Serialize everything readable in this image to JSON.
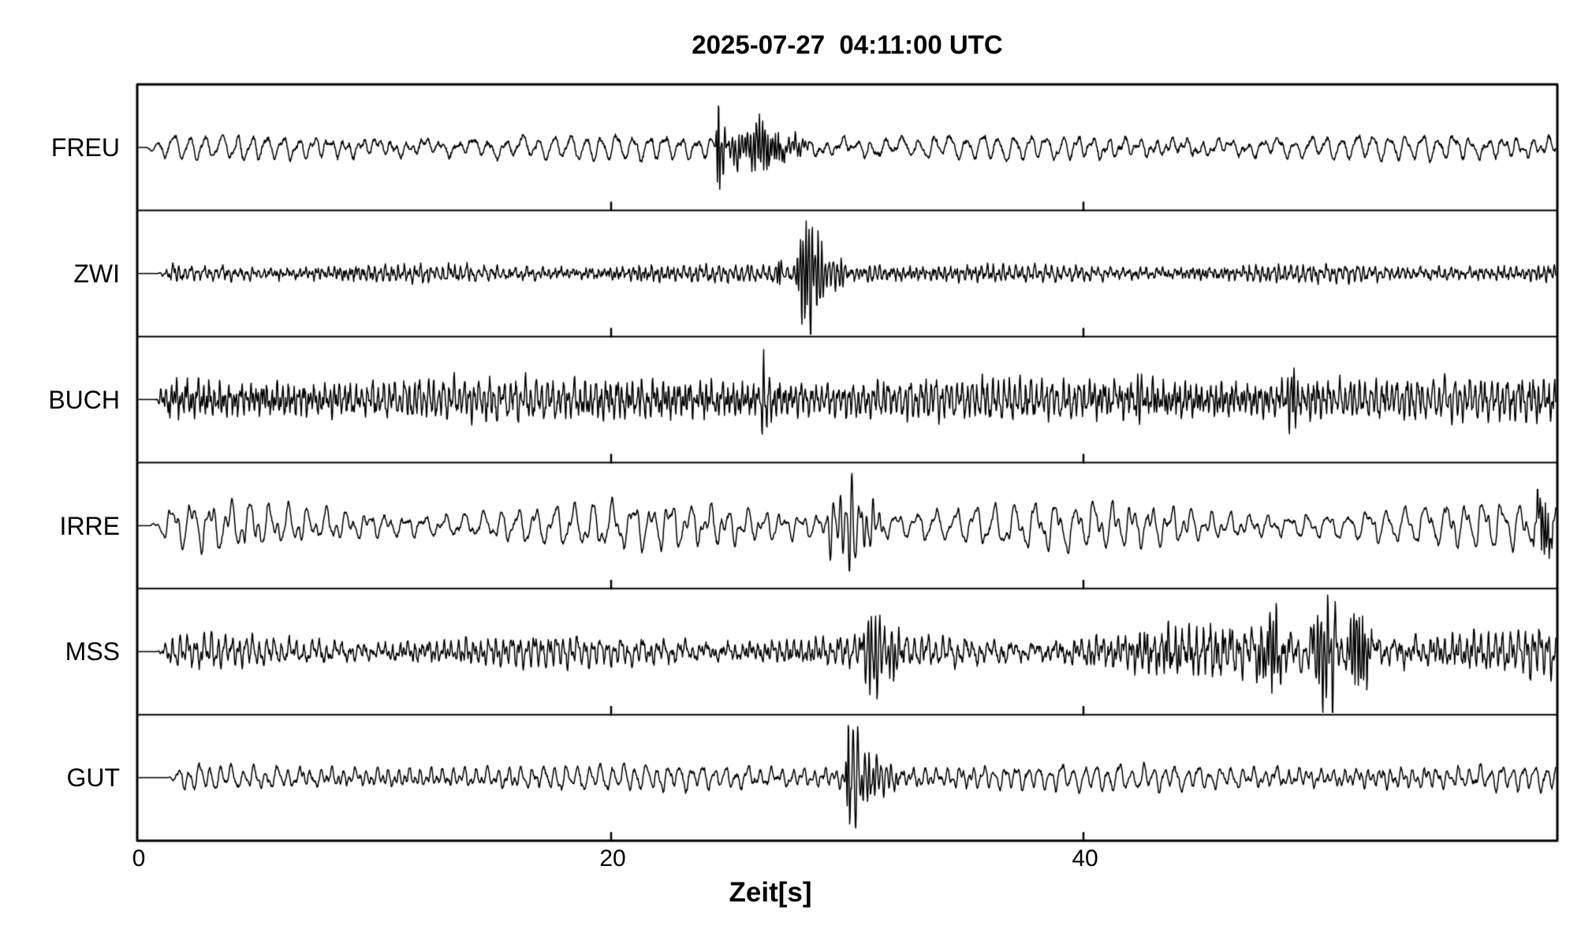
{
  "title": "2025-07-27  04:11:00 UTC",
  "colors": {
    "trace": "#000000",
    "frame": "#000000",
    "background": "#ffffff"
  },
  "chart_data": {
    "type": "line",
    "title": "2025-07-27  04:11:00 UTC",
    "xlabel": "Zeit[s]",
    "ylabel": "",
    "x_range": [
      0,
      60
    ],
    "x_ticks": [
      0,
      20,
      40
    ],
    "x_tick_labels": [
      "0",
      "20",
      "40"
    ],
    "grid": false,
    "legend": "none",
    "panels": 6,
    "y_units": "normalized amplitude (no y scale shown)",
    "stations": [
      {
        "label": "FREU",
        "trace_start_s": 0.3,
        "onset_ramp_s": 0.8,
        "noise": {
          "components": [
            {
              "freq_hz": 1.5,
              "amp": 9,
              "jitter": 0.25
            },
            {
              "freq_hz": 3.0,
              "amp": 4,
              "jitter": 0.4
            },
            {
              "freq_hz": 0.5,
              "amp": 3,
              "jitter": 0.15
            }
          ],
          "white": 2.2,
          "am_depth": 0.45,
          "am_freq_hz": 0.06,
          "boosts": []
        },
        "events": [
          {
            "time_s": 24.55,
            "width_s": 0.09,
            "freq_hz": 10,
            "amp": 62,
            "shape": "spike"
          },
          {
            "time_s": 24.75,
            "width_s": 0.12,
            "freq_hz": 8,
            "amp": -30,
            "shape": "spike"
          },
          {
            "time_s": 25.3,
            "width_s": 0.35,
            "freq_hz": 7,
            "amp": 16,
            "shape": "packet"
          },
          {
            "time_s": 26.2,
            "width_s": 0.55,
            "freq_hz": 8,
            "amp": 26,
            "shape": "packet"
          },
          {
            "time_s": 26.9,
            "width_s": 0.4,
            "freq_hz": 9,
            "amp": 18,
            "shape": "packet"
          },
          {
            "time_s": 27.8,
            "width_s": 0.5,
            "freq_hz": 7,
            "amp": 10,
            "shape": "packet"
          }
        ]
      },
      {
        "label": "ZWI",
        "trace_start_s": 0.8,
        "onset_ramp_s": 0.6,
        "noise": {
          "components": [
            {
              "freq_hz": 4.0,
              "amp": 5,
              "jitter": 0.5
            },
            {
              "freq_hz": 7.5,
              "amp": 3.5,
              "jitter": 0.6
            },
            {
              "freq_hz": 1.5,
              "amp": 2,
              "jitter": 0.3
            }
          ],
          "white": 2.8,
          "am_depth": 0.35,
          "am_freq_hz": 0.08,
          "boosts": []
        },
        "events": [
          {
            "time_s": 27.1,
            "width_s": 0.1,
            "freq_hz": 9,
            "amp": 22,
            "shape": "spike"
          },
          {
            "time_s": 28.2,
            "width_s": 0.3,
            "freq_hz": 8,
            "amp": 55,
            "shape": "packet"
          },
          {
            "time_s": 28.45,
            "width_s": 0.12,
            "freq_hz": 5,
            "amp": -70,
            "shape": "spike"
          },
          {
            "time_s": 28.75,
            "width_s": 0.3,
            "freq_hz": 7,
            "amp": 40,
            "shape": "packet"
          },
          {
            "time_s": 29.6,
            "width_s": 0.5,
            "freq_hz": 6,
            "amp": 15,
            "shape": "packet"
          },
          {
            "time_s": 31.0,
            "width_s": 1.2,
            "freq_hz": 5,
            "amp": 6,
            "shape": "packet"
          }
        ]
      },
      {
        "label": "BUCH",
        "trace_start_s": 0.7,
        "onset_ramp_s": 0.5,
        "noise": {
          "components": [
            {
              "freq_hz": 4.5,
              "amp": 13,
              "jitter": 0.5
            },
            {
              "freq_hz": 8.5,
              "amp": 8,
              "jitter": 0.6
            },
            {
              "freq_hz": 2.0,
              "amp": 6,
              "jitter": 0.3
            }
          ],
          "white": 6,
          "am_depth": 0.3,
          "am_freq_hz": 0.05,
          "boosts": []
        },
        "events": [
          {
            "time_s": 26.45,
            "width_s": 0.1,
            "freq_hz": 8,
            "amp": 58,
            "shape": "spike"
          },
          {
            "time_s": 26.6,
            "width_s": 0.12,
            "freq_hz": 5,
            "amp": -35,
            "shape": "spike"
          },
          {
            "time_s": 42.3,
            "width_s": 0.12,
            "freq_hz": 7,
            "amp": 38,
            "shape": "spike"
          },
          {
            "time_s": 48.9,
            "width_s": 0.25,
            "freq_hz": 7,
            "amp": 28,
            "shape": "packet"
          }
        ]
      },
      {
        "label": "IRRE",
        "trace_start_s": 0.5,
        "onset_ramp_s": 1.0,
        "noise": {
          "components": [
            {
              "freq_hz": 1.25,
              "amp": 15,
              "jitter": 0.22
            },
            {
              "freq_hz": 2.5,
              "amp": 8,
              "jitter": 0.35
            },
            {
              "freq_hz": 4.5,
              "amp": 3,
              "jitter": 0.5
            }
          ],
          "white": 1.6,
          "am_depth": 0.45,
          "am_freq_hz": 0.055,
          "boosts": []
        },
        "events": [
          {
            "time_s": 29.5,
            "width_s": 0.45,
            "freq_hz": 3.5,
            "amp": 28,
            "shape": "packet"
          },
          {
            "time_s": 30.1,
            "width_s": 0.3,
            "freq_hz": 4,
            "amp": 40,
            "shape": "packet"
          },
          {
            "time_s": 30.35,
            "width_s": 0.18,
            "freq_hz": 2.8,
            "amp": -48,
            "shape": "spike"
          },
          {
            "time_s": 30.9,
            "width_s": 0.5,
            "freq_hz": 4,
            "amp": 22,
            "shape": "packet"
          },
          {
            "time_s": 59.5,
            "width_s": 0.35,
            "freq_hz": 9,
            "amp": 28,
            "shape": "packet"
          }
        ]
      },
      {
        "label": "MSS",
        "trace_start_s": 0.8,
        "onset_ramp_s": 0.6,
        "noise": {
          "components": [
            {
              "freq_hz": 3.2,
              "amp": 9,
              "jitter": 0.4
            },
            {
              "freq_hz": 6.5,
              "amp": 6,
              "jitter": 0.55
            },
            {
              "freq_hz": 1.1,
              "amp": 4,
              "jitter": 0.2
            }
          ],
          "white": 3.5,
          "am_depth": 0.4,
          "am_freq_hz": 0.07,
          "boosts": [
            {
              "from_s": 40,
              "to_s": 60,
              "gain": 1.5,
              "ramp_s": 1.5
            }
          ]
        },
        "events": [
          {
            "time_s": 31.05,
            "width_s": 0.4,
            "freq_hz": 6,
            "amp": 52,
            "shape": "packet"
          },
          {
            "time_s": 31.25,
            "width_s": 0.15,
            "freq_hz": 3.5,
            "amp": -42,
            "shape": "spike"
          },
          {
            "time_s": 32.0,
            "width_s": 0.5,
            "freq_hz": 7,
            "amp": 18,
            "shape": "packet"
          },
          {
            "time_s": 43.6,
            "width_s": 1.3,
            "freq_hz": 9,
            "amp": 10,
            "shape": "packet"
          },
          {
            "time_s": 45.8,
            "width_s": 1.2,
            "freq_hz": 10,
            "amp": 9,
            "shape": "packet"
          },
          {
            "time_s": 48.0,
            "width_s": 0.55,
            "freq_hz": 8,
            "amp": 34,
            "shape": "packet"
          },
          {
            "time_s": 50.25,
            "width_s": 0.5,
            "freq_hz": 7,
            "amp": 48,
            "shape": "packet"
          },
          {
            "time_s": 50.55,
            "width_s": 0.2,
            "freq_hz": 3.5,
            "amp": -48,
            "shape": "spike"
          },
          {
            "time_s": 51.65,
            "width_s": 0.45,
            "freq_hz": 8,
            "amp": 42,
            "shape": "packet"
          }
        ]
      },
      {
        "label": "GUT",
        "trace_start_s": 1.2,
        "onset_ramp_s": 0.8,
        "noise": {
          "components": [
            {
              "freq_hz": 2.1,
              "amp": 9,
              "jitter": 0.3
            },
            {
              "freq_hz": 4.2,
              "amp": 4.5,
              "jitter": 0.45
            },
            {
              "freq_hz": 0.9,
              "amp": 3,
              "jitter": 0.2
            }
          ],
          "white": 2.0,
          "am_depth": 0.4,
          "am_freq_hz": 0.05,
          "boosts": []
        },
        "events": [
          {
            "time_s": 30.05,
            "width_s": 0.1,
            "freq_hz": 9,
            "amp": 62,
            "shape": "spike"
          },
          {
            "time_s": 30.35,
            "width_s": 0.22,
            "freq_hz": 4.5,
            "amp": -60,
            "shape": "spike"
          },
          {
            "time_s": 30.8,
            "width_s": 0.5,
            "freq_hz": 6,
            "amp": 26,
            "shape": "packet"
          },
          {
            "time_s": 31.8,
            "width_s": 0.6,
            "freq_hz": 5,
            "amp": 12,
            "shape": "packet"
          }
        ]
      }
    ]
  }
}
